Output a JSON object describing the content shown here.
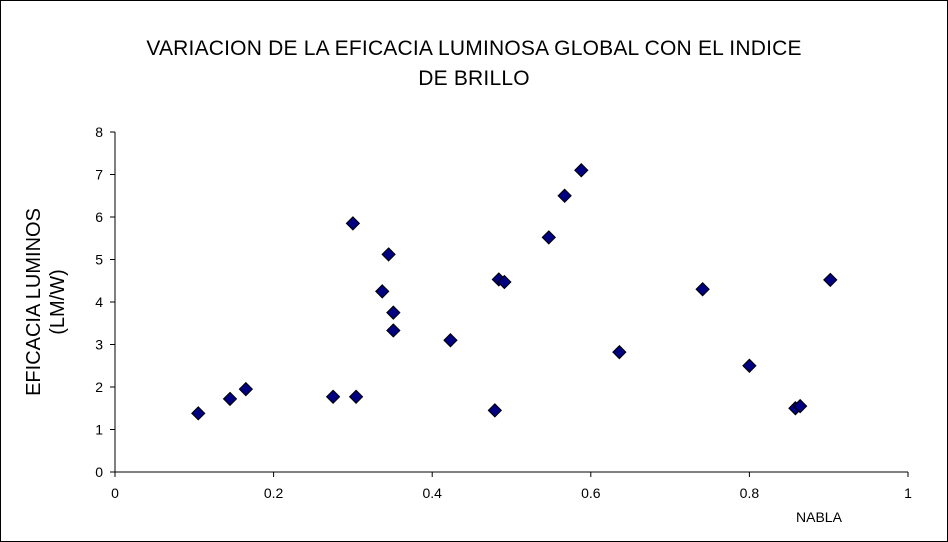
{
  "chart_data": {
    "type": "scatter",
    "title_lines": [
      "VARIACION DE LA EFICACIA LUMINOSA GLOBAL CON EL INDICE",
      "DE BRILLO"
    ],
    "xlabel": "NABLA",
    "ylabel_lines": [
      "EFICACIA LUMINOS",
      "(LM/W)"
    ],
    "xlim": [
      0,
      1
    ],
    "ylim": [
      0,
      8
    ],
    "x_ticks": [
      "0",
      "0.2",
      "0.4",
      "0.6",
      "0.8",
      "1"
    ],
    "x_tick_values": [
      0,
      0.2,
      0.4,
      0.6,
      0.8,
      1
    ],
    "y_ticks": [
      "0",
      "1",
      "2",
      "3",
      "4",
      "5",
      "6",
      "7",
      "8"
    ],
    "y_tick_values": [
      0,
      1,
      2,
      3,
      4,
      5,
      6,
      7,
      8
    ],
    "grid": false,
    "legend": "none",
    "marker": "diamond",
    "marker_color": "#000080",
    "points": [
      {
        "x": 0.105,
        "y": 1.38
      },
      {
        "x": 0.145,
        "y": 1.72
      },
      {
        "x": 0.165,
        "y": 1.95
      },
      {
        "x": 0.275,
        "y": 1.77
      },
      {
        "x": 0.3,
        "y": 5.85
      },
      {
        "x": 0.304,
        "y": 1.77
      },
      {
        "x": 0.337,
        "y": 4.25
      },
      {
        "x": 0.345,
        "y": 5.12
      },
      {
        "x": 0.351,
        "y": 3.75
      },
      {
        "x": 0.351,
        "y": 3.33
      },
      {
        "x": 0.423,
        "y": 3.1
      },
      {
        "x": 0.479,
        "y": 1.45
      },
      {
        "x": 0.484,
        "y": 4.53
      },
      {
        "x": 0.491,
        "y": 4.47
      },
      {
        "x": 0.547,
        "y": 5.52
      },
      {
        "x": 0.567,
        "y": 6.5
      },
      {
        "x": 0.588,
        "y": 7.1
      },
      {
        "x": 0.636,
        "y": 2.82
      },
      {
        "x": 0.741,
        "y": 4.3
      },
      {
        "x": 0.8,
        "y": 2.5
      },
      {
        "x": 0.858,
        "y": 1.5
      },
      {
        "x": 0.864,
        "y": 1.55
      },
      {
        "x": 0.902,
        "y": 4.52
      }
    ]
  }
}
